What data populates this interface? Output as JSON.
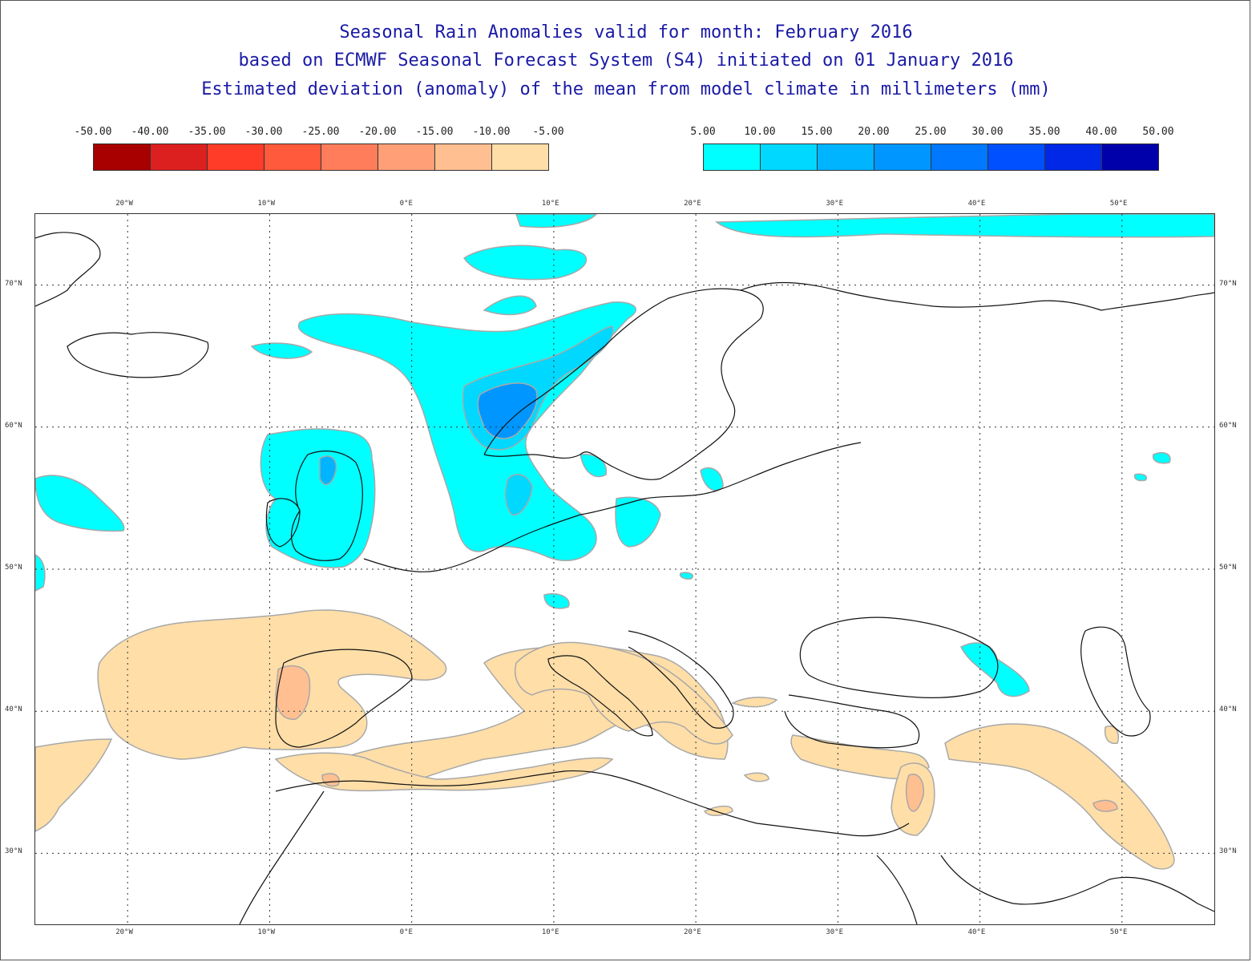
{
  "titles": {
    "line1": "Seasonal Rain Anomalies valid for month: February 2016",
    "line2": "based on ECMWF Seasonal Forecast System (S4) initiated on 01 January 2016",
    "line3": "Estimated deviation (anomaly) of the mean from model climate in millimeters (mm)"
  },
  "legend_negative": {
    "labels": [
      "-50.00",
      "-40.00",
      "-35.00",
      "-30.00",
      "-25.00",
      "-20.00",
      "-15.00",
      "-10.00",
      "-5.00"
    ],
    "colors": [
      "#a80000",
      "#dc2020",
      "#ff3c28",
      "#ff5a3c",
      "#ff7d5a",
      "#ff9f78",
      "#ffbf91",
      "#ffdea8"
    ]
  },
  "legend_positive": {
    "labels": [
      "5.00",
      "10.00",
      "15.00",
      "20.00",
      "25.00",
      "30.00",
      "35.00",
      "40.00",
      "50.00"
    ],
    "colors": [
      "#00ffff",
      "#00d8ff",
      "#00b4ff",
      "#0096ff",
      "#0078ff",
      "#0050ff",
      "#0028e6",
      "#0000aa"
    ]
  },
  "map": {
    "lon_labels": [
      "20°W",
      "10°W",
      "0°E",
      "10°E",
      "20°E",
      "30°E",
      "40°E",
      "50°E"
    ],
    "lat_labels": [
      "70°N",
      "60°N",
      "50°N",
      "40°N",
      "30°N"
    ],
    "extent": {
      "lon_min": -26.5,
      "lon_max": 56.5,
      "lat_min": 25,
      "lat_max": 75
    },
    "colors": {
      "land_outline": "#111111",
      "grid": "#333333",
      "contour": "#a8a8a8"
    }
  }
}
